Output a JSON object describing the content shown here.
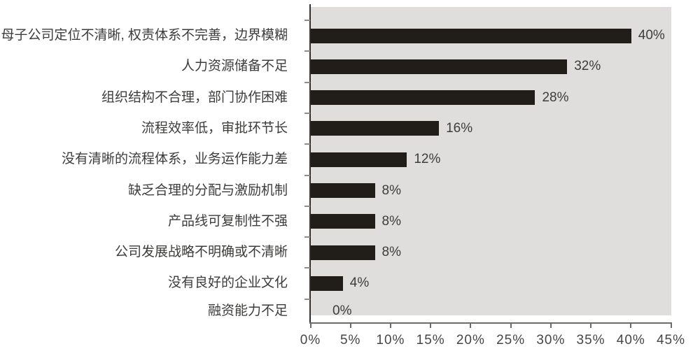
{
  "chart_data": {
    "type": "bar",
    "orientation": "horizontal",
    "title": "",
    "xlabel": "",
    "ylabel": "",
    "categories": [
      "母子公司定位不清晰, 权责体系不完善，边界模糊",
      "人力资源储备不足",
      "组织结构不合理，部门协作困难",
      "流程效率低，审批环节长",
      "没有清晰的流程体系，业务运作能力差",
      "缺乏合理的分配与激励机制",
      "产品线可复制性不强",
      "公司发展战略不明确或不清晰",
      "没有良好的企业文化",
      "融资能力不足"
    ],
    "values": [
      40,
      32,
      28,
      16,
      12,
      8,
      8,
      8,
      4,
      0
    ],
    "value_labels": [
      "40%",
      "32%",
      "28%",
      "16%",
      "12%",
      "8%",
      "8%",
      "8%",
      "4%",
      "0%"
    ],
    "x_tick_labels": [
      "0%",
      "5%",
      "10%",
      "15%",
      "20%",
      "25%",
      "30%",
      "35%",
      "40%",
      "45%"
    ],
    "xlim": [
      0,
      45
    ],
    "x_tick_step": 5,
    "grid": "off",
    "legend": "none"
  },
  "colors": {
    "bar": "#211d19",
    "plot_background": "#e0dedd",
    "page_background": "#ffffff",
    "category_text": "#3d3c3b",
    "value_text": "#3d3c3b",
    "axis_text": "#474645",
    "y_axis_line": "#34302d",
    "x_axis_line": "#6f6d6a",
    "tick": "#8f8d8a"
  }
}
